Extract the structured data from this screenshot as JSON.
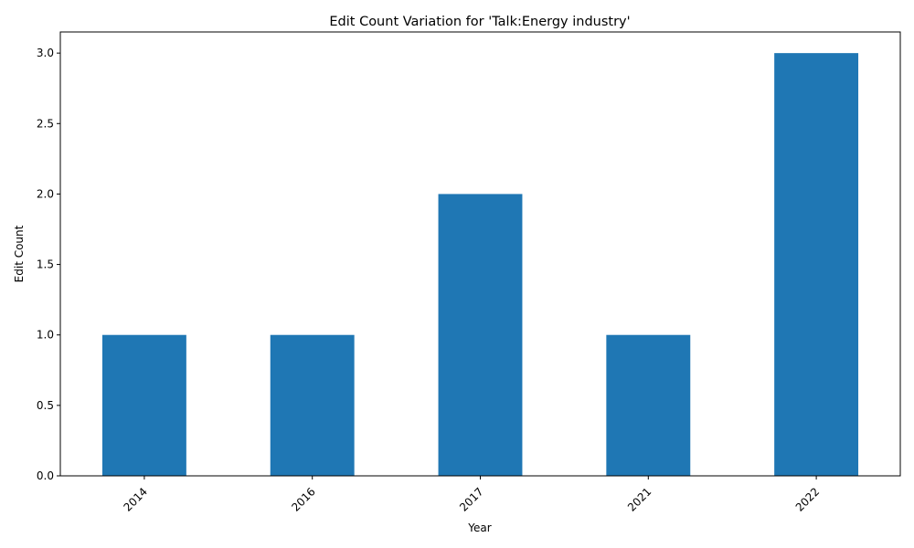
{
  "chart_data": {
    "type": "bar",
    "title": "Edit Count Variation for 'Talk:Energy industry'",
    "xlabel": "Year",
    "ylabel": "Edit Count",
    "categories": [
      "2014",
      "2016",
      "2017",
      "2021",
      "2022"
    ],
    "values": [
      1,
      1,
      2,
      1,
      3
    ],
    "ylim": [
      0,
      3.15
    ],
    "yticks": [
      "0.0",
      "0.5",
      "1.0",
      "1.5",
      "2.0",
      "2.5",
      "3.0"
    ],
    "bar_color": "#1f77b4",
    "grid": false,
    "legend": "none"
  }
}
